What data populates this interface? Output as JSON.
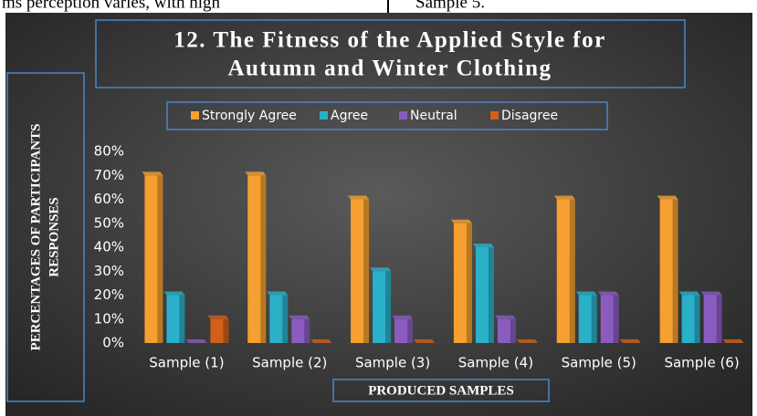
{
  "page_text": [
    "ms  perception  varies,  with  high",
    "Sample 5."
  ],
  "chart_data": {
    "type": "bar",
    "title": [
      "12. The Fitness of the Applied Style for",
      "Autumn and Winter Clothing"
    ],
    "x_label": "PRODUCED SAMPLES",
    "y_label": [
      "PERCENTAGES OF PARTICIPANTS",
      "RESPONSES"
    ],
    "categories": [
      "Sample (1)",
      "Sample (2)",
      "Sample (3)",
      "Sample (4)",
      "Sample (5)",
      "Sample (6)"
    ],
    "series": [
      {
        "name": "Strongly Agree",
        "color": "#f5a030",
        "values": [
          70,
          70,
          60,
          50,
          60,
          60
        ]
      },
      {
        "name": "Agree",
        "color": "#2ab0c8",
        "values": [
          20,
          20,
          30,
          40,
          20,
          20
        ]
      },
      {
        "name": "Neutral",
        "color": "#8a5cc0",
        "values": [
          0,
          10,
          10,
          10,
          20,
          20
        ]
      },
      {
        "name": "Disagree",
        "color": "#d2601a",
        "values": [
          10,
          0,
          0,
          0,
          0,
          0
        ]
      }
    ],
    "ylim": [
      0,
      80
    ],
    "yticks": [
      {
        "value": 0,
        "label": "0%"
      },
      {
        "value": 10,
        "label": "10%"
      },
      {
        "value": 20,
        "label": "20%"
      },
      {
        "value": 30,
        "label": "30%"
      },
      {
        "value": 40,
        "label": "40%"
      },
      {
        "value": 50,
        "label": "50%"
      },
      {
        "value": 60,
        "label": "60%"
      },
      {
        "value": 70,
        "label": "70%"
      },
      {
        "value": 80,
        "label": "80%"
      }
    ],
    "legend": "top"
  }
}
